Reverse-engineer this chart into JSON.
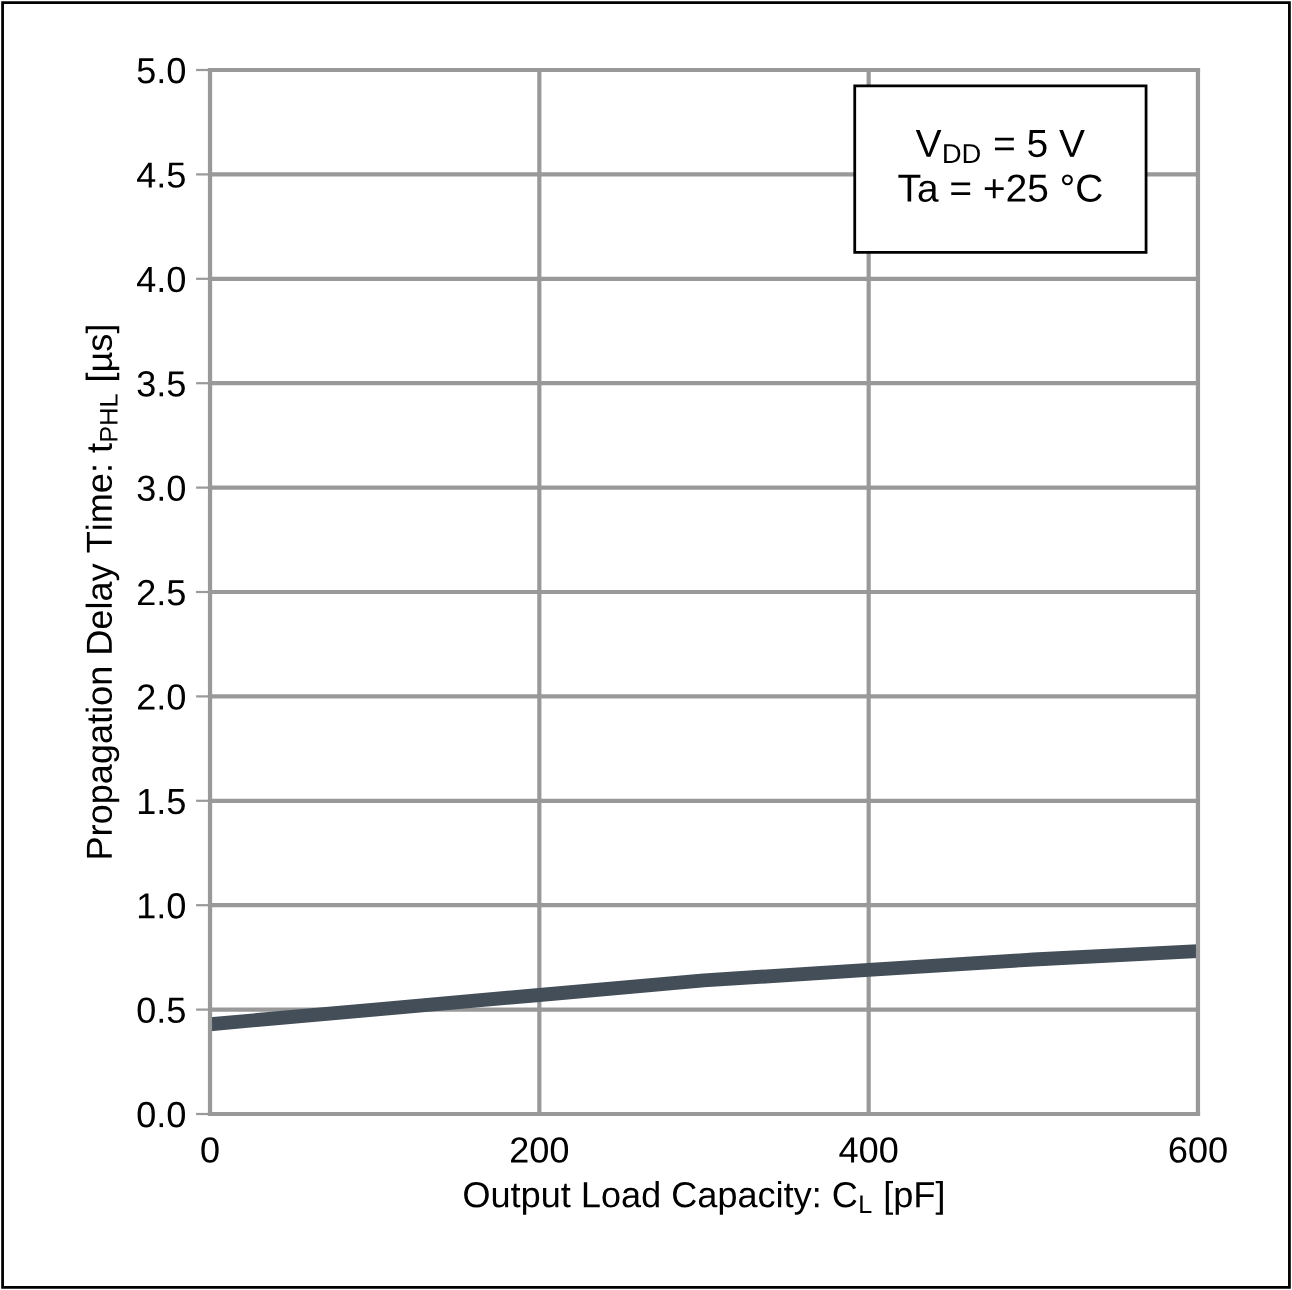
{
  "chart_data": {
    "type": "line",
    "xlabel": "Output Load Capacity: C$_{L}$ [pF]",
    "ylabel": "Propagation Delay Time: t$_{PHL}$ [µs]",
    "annotations": [
      "V$_{DD}$ = 5 V\nTa = +25 °C"
    ],
    "x": [
      0,
      100,
      200,
      300,
      400,
      500,
      600
    ],
    "series": [
      {
        "color": "#434e58",
        "values": [
          0.43,
          0.5,
          0.57,
          0.64,
          0.69,
          0.74,
          0.78
        ]
      }
    ],
    "xlim": [
      0,
      600
    ],
    "xticks": [
      0,
      200,
      400,
      600
    ],
    "ylim": [
      0,
      5
    ],
    "yticks": [
      {
        "value": 0,
        "label": "0.0"
      },
      {
        "value": 0.5,
        "label": "0.5"
      },
      {
        "value": 1,
        "label": "1.0"
      },
      {
        "value": 1.5,
        "label": "1.5"
      },
      {
        "value": 2,
        "label": "2.0"
      },
      {
        "value": 2.5,
        "label": "2.5"
      },
      {
        "value": 3,
        "label": "3.0"
      },
      {
        "value": 3.5,
        "label": "3.5"
      },
      {
        "value": 4,
        "label": "4.0"
      },
      {
        "value": 4.5,
        "label": "4.5"
      },
      {
        "value": 5,
        "label": "5.0"
      }
    ],
    "grid": true,
    "marker": "none",
    "line_style": "solid",
    "legend": false
  }
}
